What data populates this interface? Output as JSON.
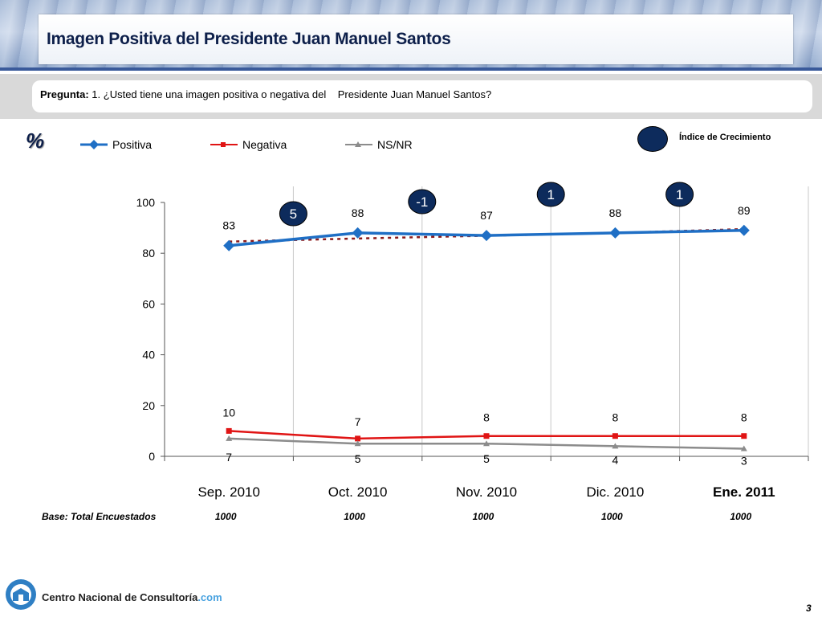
{
  "header": {
    "title": "Imagen Positiva del Presidente Juan Manuel Santos"
  },
  "question": {
    "label": "Pregunta:",
    "text": "1. ¿Usted tiene una imagen positiva o negativa del    Presidente Juan Manuel Santos?"
  },
  "unit_symbol": "%",
  "growth_legend": {
    "label": "Índice de Crecimiento"
  },
  "chart_data": {
    "type": "line",
    "categories": [
      "Sep. 2010",
      "Oct. 2010",
      "Nov. 2010",
      "Dic. 2010",
      "Ene. 2011"
    ],
    "highlighted_category": "Ene. 2011",
    "ylim": [
      0,
      100
    ],
    "yticks": [
      0,
      20,
      40,
      60,
      80,
      100
    ],
    "grid": "vertical",
    "legend_position": "top-left",
    "series": [
      {
        "name": "Positiva",
        "values": [
          83,
          88,
          87,
          88,
          89
        ],
        "color": "#1f6fc5",
        "marker": "diamond"
      },
      {
        "name": "Negativa",
        "values": [
          10,
          7,
          8,
          8,
          8
        ],
        "color": "#e01414",
        "marker": "square"
      },
      {
        "name": "NS/NR",
        "values": [
          7,
          5,
          5,
          4,
          3
        ],
        "color": "#8c8c8c",
        "marker": "triangle"
      }
    ],
    "data_labels": {
      "Positiva": [
        "83",
        "88",
        "87",
        "88",
        "89"
      ],
      "Negativa": [
        "10",
        "7",
        "8",
        "8",
        "8"
      ],
      "NS/NR": [
        "7",
        "5",
        "5",
        "4",
        "3"
      ]
    },
    "trendline": {
      "style": "dotted",
      "color": "#8b1a1a",
      "of_series": "Positiva",
      "values": [
        84.6,
        85.8,
        86.9,
        88.0,
        89.5
      ]
    },
    "growth_index": [
      {
        "between": [
          "Sep. 2010",
          "Oct. 2010"
        ],
        "value": "5"
      },
      {
        "between": [
          "Oct. 2010",
          "Nov. 2010"
        ],
        "value": "-1"
      },
      {
        "between": [
          "Nov. 2010",
          "Dic. 2010"
        ],
        "value": "1"
      },
      {
        "between": [
          "Dic. 2010",
          "Ene. 2011"
        ],
        "value": "1"
      }
    ],
    "base": {
      "label": "Base: Total Encuestados",
      "values": [
        "1000",
        "1000",
        "1000",
        "1000",
        "1000"
      ]
    }
  },
  "footer": {
    "org_name": "Centro Nacional de Consultoría",
    "org_domain": ".com",
    "page_number": "3"
  },
  "colors": {
    "navy": "#0d2b5c",
    "title": "#0d1f4a"
  }
}
